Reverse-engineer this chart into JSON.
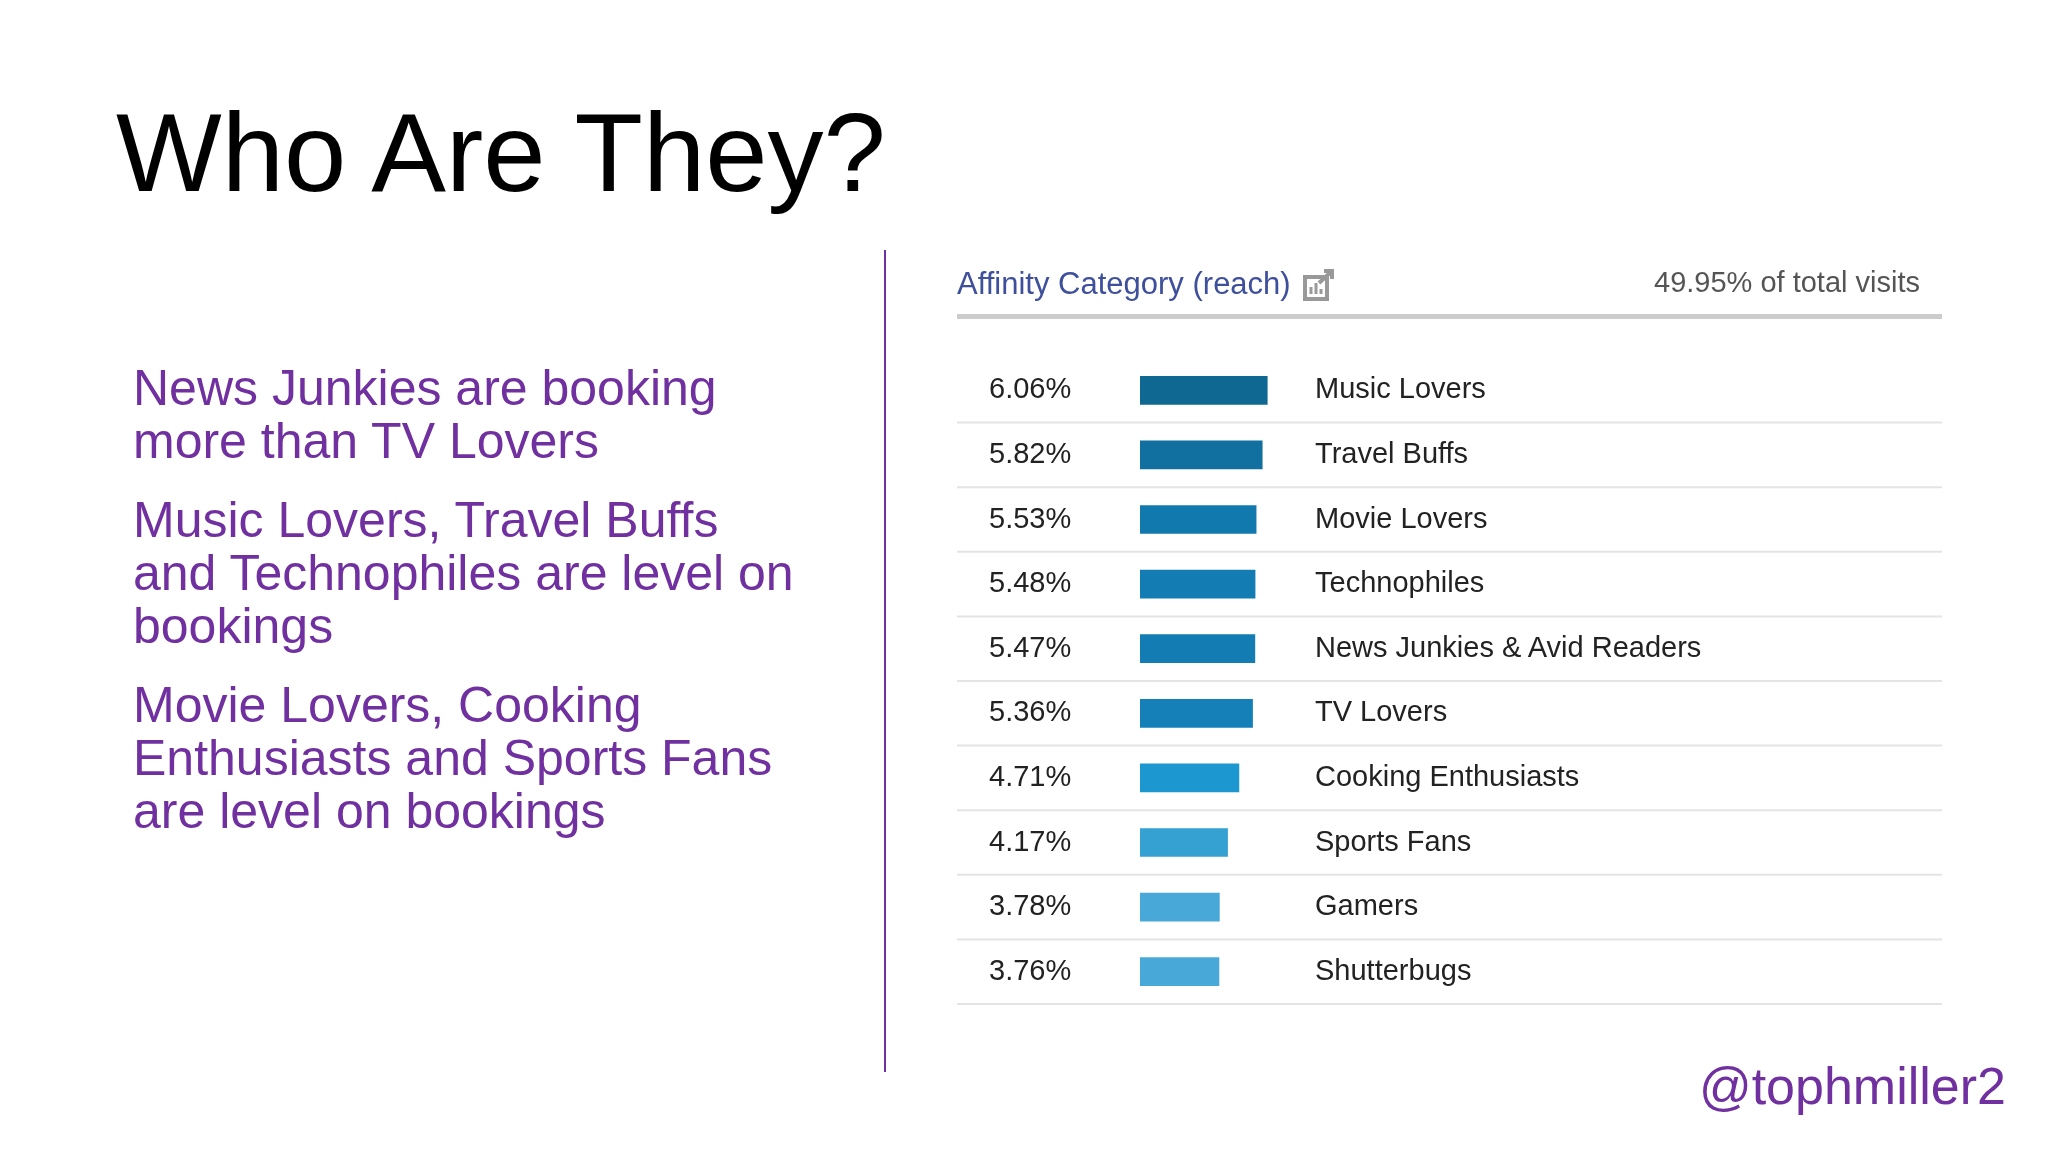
{
  "chart_data": {
    "type": "bar",
    "orientation": "horizontal",
    "title": "Who Are They?",
    "subtitle": "Affinity Category (reach)",
    "annotations": [
      "News Junkies are booking more than TV Lovers",
      "Music Lovers, Travel Buffs and Technophiles are level on bookings",
      "Movie Lovers, Cooking Enthusiasts and Sports Fans are level on bookings",
      "49.95% of total visits",
      "@tophmiller2"
    ],
    "categories": [
      "Music Lovers",
      "Travel Buffs",
      "Movie Lovers",
      "Technophiles",
      "News Junkies & Avid Readers",
      "TV Lovers",
      "Cooking Enthusiasts",
      "Sports Fans",
      "Gamers",
      "Shutterbugs"
    ],
    "values": [
      6.06,
      5.82,
      5.53,
      5.48,
      5.47,
      5.36,
      4.71,
      4.17,
      3.78,
      3.76
    ],
    "value_labels": [
      "6.06%",
      "5.82%",
      "5.53%",
      "5.48%",
      "5.47%",
      "5.36%",
      "4.71%",
      "4.17%",
      "3.78%",
      "3.76%"
    ],
    "colors": [
      "#0e6892",
      "#11709f",
      "#1279ae",
      "#137cb2",
      "#137cb2",
      "#1580b8",
      "#1d97d0",
      "#34a1d2",
      "#48a9d9",
      "#48a9d9"
    ],
    "legend": false
  }
}
